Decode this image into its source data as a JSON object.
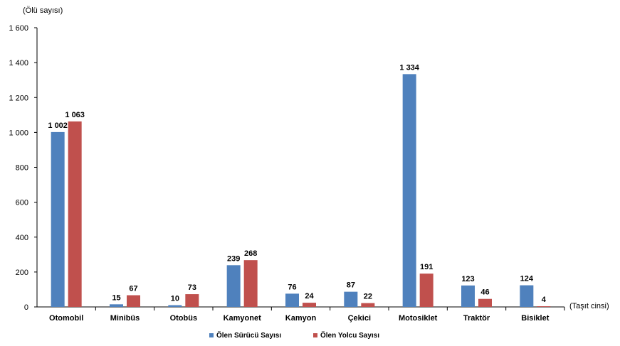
{
  "chart_data": {
    "type": "bar",
    "ylabel": "(Ölü sayısı)",
    "xlabel": "(Taşıt cinsi)",
    "ylim": [
      0,
      1600
    ],
    "yticks": [
      0,
      200,
      400,
      600,
      800,
      1000,
      1200,
      1400,
      1600
    ],
    "ytick_labels": [
      "0",
      "200",
      "400",
      "600",
      "800",
      "1 000",
      "1 200",
      "1 400",
      "1 600"
    ],
    "categories": [
      "Otomobil",
      "Minibüs",
      "Otobüs",
      "Kamyonet",
      "Kamyon",
      "Çekici",
      "Motosiklet",
      "Traktör",
      "Bisiklet"
    ],
    "series": [
      {
        "name": "Ölen Sürücü Sayısı",
        "color": "#4f81bd",
        "values": [
          1002,
          15,
          10,
          239,
          76,
          87,
          1334,
          123,
          124
        ],
        "labels": [
          "1 002",
          "15",
          "10",
          "239",
          "76",
          "87",
          "1 334",
          "123",
          "124"
        ]
      },
      {
        "name": "Ölen Yolcu Sayısı",
        "color": "#c0504d",
        "values": [
          1063,
          67,
          73,
          268,
          24,
          22,
          191,
          46,
          4
        ],
        "labels": [
          "1 063",
          "67",
          "73",
          "268",
          "24",
          "22",
          "191",
          "46",
          "4"
        ]
      }
    ],
    "grid": false,
    "legend": "bottom"
  }
}
